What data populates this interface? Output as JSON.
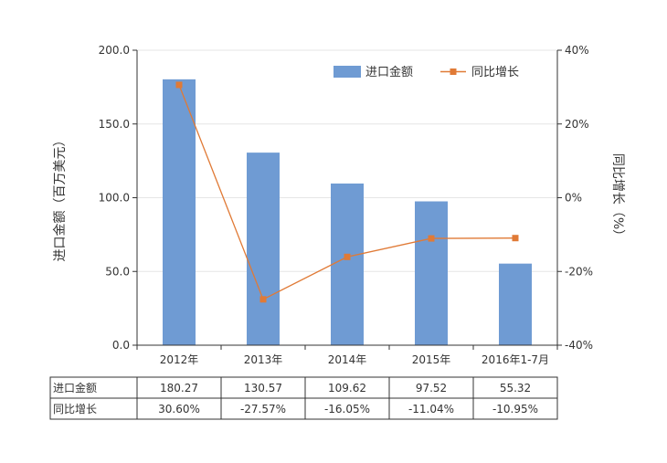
{
  "chart_data": {
    "type": "bar",
    "categories": [
      "2012年",
      "2013年",
      "2014年",
      "2015年",
      "2016年1-7月"
    ],
    "series": [
      {
        "name": "进口金额",
        "kind": "bar",
        "axis": "left",
        "color": "#6f9bd3",
        "values": [
          180.27,
          130.57,
          109.62,
          97.52,
          55.32
        ],
        "labels": [
          "180.27",
          "130.57",
          "109.62",
          "97.52",
          "55.32"
        ]
      },
      {
        "name": "同比增长",
        "kind": "line",
        "axis": "right",
        "color": "#e07a36",
        "values": [
          30.6,
          -27.57,
          -16.05,
          -11.04,
          -10.95
        ],
        "labels": [
          "30.60%",
          "-27.57%",
          "-16.05%",
          "-11.04%",
          "-10.95%"
        ]
      }
    ],
    "ylabel": "进口金额（百万美元）",
    "y2label": "同比增长（%）",
    "ylim": [
      0,
      200
    ],
    "y2lim": [
      -40,
      40
    ],
    "yticks": [
      0,
      50,
      100,
      150,
      200
    ],
    "ytick_labels": [
      "0.0",
      "50.0",
      "100.0",
      "150.0",
      "200.0"
    ],
    "y2ticks": [
      -40,
      -20,
      0,
      20,
      40
    ],
    "y2tick_labels": [
      "-40%",
      "-20%",
      "0%",
      "20%",
      "40%"
    ],
    "legend_position": "top-right",
    "grid": true
  }
}
